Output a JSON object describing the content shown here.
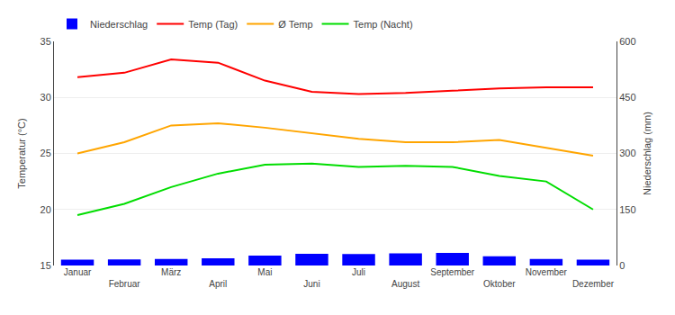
{
  "chart_data": {
    "type": "line",
    "categories": [
      "Januar",
      "Februar",
      "März",
      "April",
      "Mai",
      "Juni",
      "Juli",
      "August",
      "September",
      "Oktober",
      "November",
      "Dezember"
    ],
    "series": [
      {
        "name": "Niederschlag",
        "type": "bar",
        "axis": "y2",
        "color": "#0000ff",
        "values": [
          15.5,
          16.5,
          17.5,
          19.0,
          26.5,
          31.5,
          30.5,
          32.5,
          34.0,
          25.0,
          17.5,
          15.5
        ]
      },
      {
        "name": "Temp (Tag)",
        "type": "line",
        "color": "#ff0000",
        "values": [
          31.8,
          32.2,
          33.4,
          33.1,
          31.5,
          30.5,
          30.3,
          30.4,
          30.6,
          30.8,
          30.9,
          30.9
        ]
      },
      {
        "name": "Ø Temp",
        "type": "line",
        "color": "#ffa500",
        "values": [
          25.0,
          26.0,
          27.5,
          27.7,
          27.3,
          26.8,
          26.3,
          26.0,
          26.0,
          26.2,
          25.5,
          24.8
        ]
      },
      {
        "name": "Temp (Nacht)",
        "type": "line",
        "color": "#00dd00",
        "values": [
          19.5,
          20.5,
          22.0,
          23.2,
          24.0,
          24.1,
          23.8,
          23.9,
          23.8,
          23.0,
          22.5,
          20.0
        ]
      }
    ],
    "y_label": "Temperatur (°C)",
    "y2_label": "Niederschlag (mm)",
    "ylim": [
      15,
      35
    ],
    "yticks": [
      15,
      20,
      25,
      30,
      35
    ],
    "y2lim": [
      0,
      600
    ],
    "y2ticks": [
      0,
      150,
      300,
      450,
      600
    ],
    "grid": true,
    "legend": "upper left"
  }
}
